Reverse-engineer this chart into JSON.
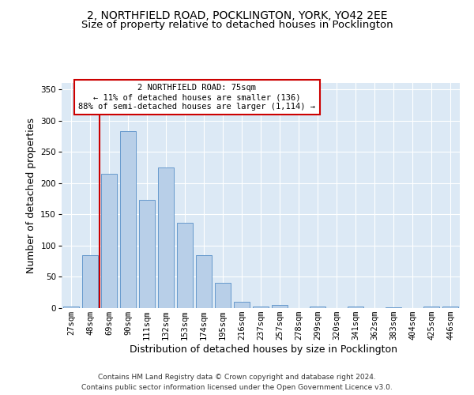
{
  "title1": "2, NORTHFIELD ROAD, POCKLINGTON, YORK, YO42 2EE",
  "title2": "Size of property relative to detached houses in Pocklington",
  "xlabel": "Distribution of detached houses by size in Pocklington",
  "ylabel": "Number of detached properties",
  "bar_labels": [
    "27sqm",
    "48sqm",
    "69sqm",
    "90sqm",
    "111sqm",
    "132sqm",
    "153sqm",
    "174sqm",
    "195sqm",
    "216sqm",
    "237sqm",
    "257sqm",
    "278sqm",
    "299sqm",
    "320sqm",
    "341sqm",
    "362sqm",
    "383sqm",
    "404sqm",
    "425sqm",
    "446sqm"
  ],
  "bar_values": [
    3,
    85,
    215,
    283,
    173,
    225,
    136,
    85,
    40,
    10,
    3,
    5,
    0,
    3,
    0,
    3,
    0,
    1,
    0,
    2,
    2
  ],
  "bar_color": "#b8cfe8",
  "bar_edge_color": "#6699cc",
  "vline_color": "#cc0000",
  "vline_x": 1.5,
  "annotation_line1": "2 NORTHFIELD ROAD: 75sqm",
  "annotation_line2": "← 11% of detached houses are smaller (136)",
  "annotation_line3": "88% of semi-detached houses are larger (1,114) →",
  "annotation_box_edgecolor": "#cc0000",
  "ylim": [
    0,
    360
  ],
  "yticks": [
    0,
    50,
    100,
    150,
    200,
    250,
    300,
    350
  ],
  "bg_color": "#dce9f5",
  "grid_color": "#ffffff",
  "footer1": "Contains HM Land Registry data © Crown copyright and database right 2024.",
  "footer2": "Contains public sector information licensed under the Open Government Licence v3.0.",
  "title1_fontsize": 10,
  "title2_fontsize": 9.5,
  "ylabel_fontsize": 9,
  "xlabel_fontsize": 9,
  "tick_fontsize": 7.5,
  "annotation_fontsize": 7.5,
  "footer_fontsize": 6.5
}
